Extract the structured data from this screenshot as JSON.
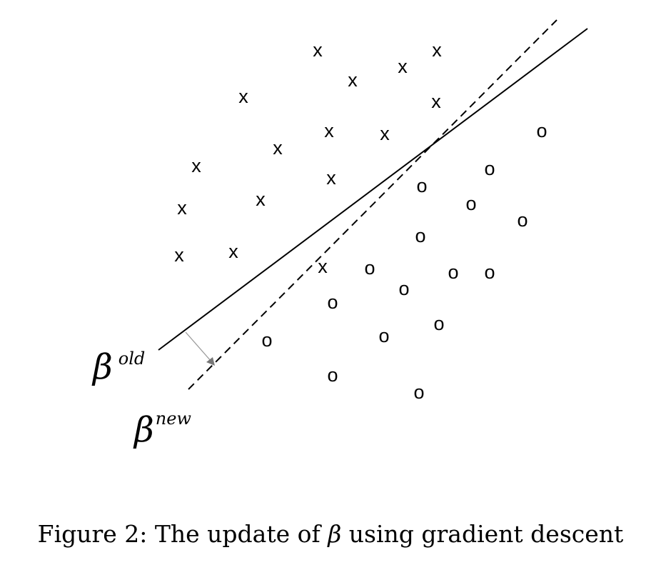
{
  "figure": {
    "x_marker": "x",
    "o_marker": "o",
    "x_points_count_note": "",
    "boundary_old": {
      "symbol": "β",
      "superscript": "old"
    },
    "boundary_new": {
      "symbol": "β",
      "superscript": "new"
    }
  },
  "caption": {
    "prefix": "Figure 2: The update of ",
    "symbol": "β",
    "suffix": " using gradient descent"
  }
}
